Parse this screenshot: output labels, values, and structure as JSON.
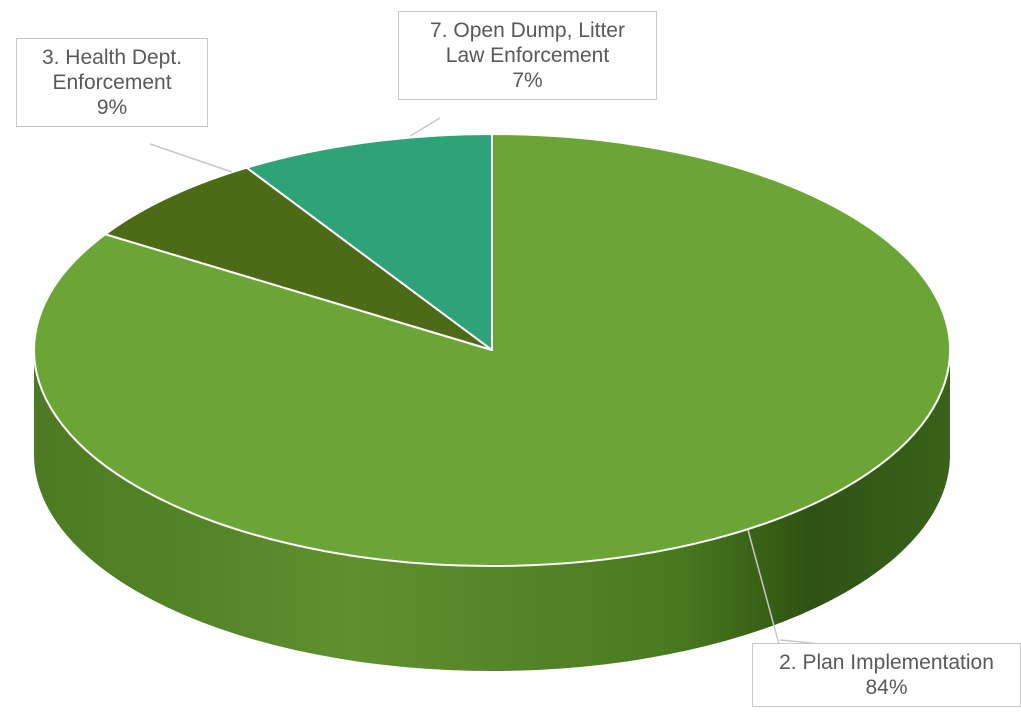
{
  "chart_data": {
    "type": "pie",
    "style": "3d",
    "title": "",
    "slices": [
      {
        "label": "2.  Plan Implementation",
        "value": 84,
        "value_label": "84%",
        "color": "#6aa535"
      },
      {
        "label": "3.  Health Dept. Enforcement",
        "value": 9,
        "value_label": "9%",
        "color": "#2ea37a"
      },
      {
        "label": "7.  Open Dump, Litter Law Enforcement",
        "value": 7,
        "value_label": "7%",
        "color": "#4d6a17"
      }
    ],
    "legend": "none",
    "labels": [
      {
        "lines": [
          "7.  Open Dump, Litter",
          "Law Enforcement"
        ],
        "value_label": "7%"
      },
      {
        "lines": [
          "3.  Health Dept.",
          "Enforcement"
        ],
        "value_label": "9%"
      },
      {
        "lines": [
          "2.  Plan Implementation"
        ],
        "value_label": "84%"
      }
    ]
  }
}
